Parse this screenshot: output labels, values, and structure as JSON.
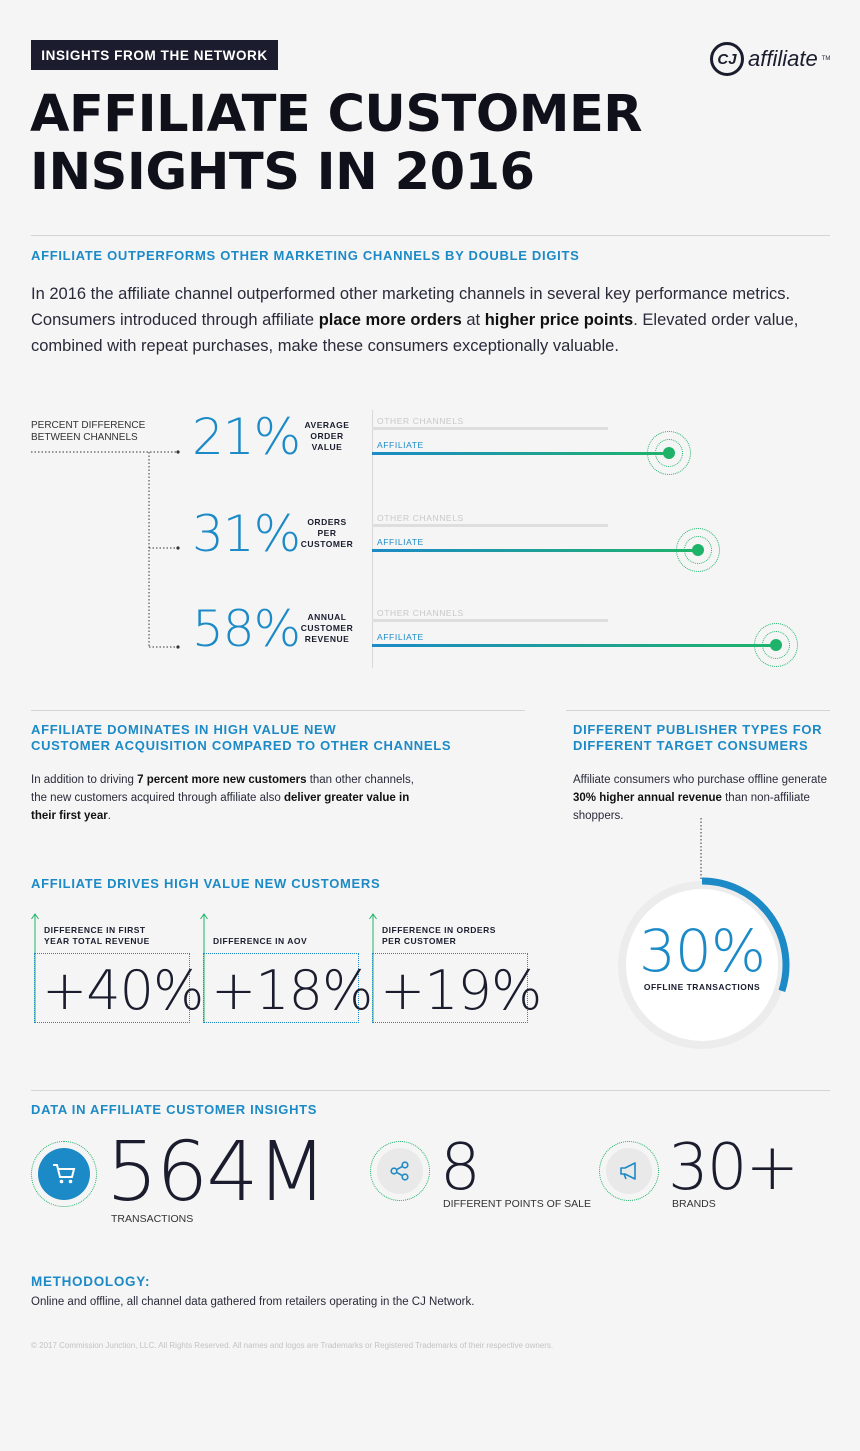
{
  "header": {
    "tag": "INSIGHTS FROM THE NETWORK",
    "logo_mark": "CJ",
    "logo_text": "affiliate",
    "logo_tm": "TM",
    "title_line1": "AFFILIATE CUSTOMER",
    "title_line2": "INSIGHTS IN 2016"
  },
  "section1": {
    "heading": "AFFILIATE OUTPERFORMS OTHER MARKETING CHANNELS BY DOUBLE DIGITS",
    "intro_1": "In 2016 the affiliate channel outperformed other marketing channels in several key performance metrics. Consumers introduced through affiliate ",
    "intro_b1": "place more orders",
    "intro_2": " at ",
    "intro_b2": "higher price points",
    "intro_3": ". Elevated order value, combined with repeat purchases, make these consumers exceptionally valuable.",
    "side_label_1": "PERCENT DIFFERENCE",
    "side_label_2": "BETWEEN CHANNELS",
    "rows": [
      {
        "pct": "21%",
        "metric_1": "AVERAGE",
        "metric_2": "ORDER",
        "metric_3": "VALUE",
        "other": "OTHER CHANNELS",
        "affiliate": "AFFILIATE",
        "other_level": 1.0,
        "affiliate_level": 1.21
      },
      {
        "pct": "31%",
        "metric_1": "ORDERS",
        "metric_2": "PER",
        "metric_3": "CUSTOMER",
        "other": "OTHER CHANNELS",
        "affiliate": "AFFILIATE",
        "other_level": 1.0,
        "affiliate_level": 1.31
      },
      {
        "pct": "58%",
        "metric_1": "ANNUAL",
        "metric_2": "CUSTOMER",
        "metric_3": "REVENUE",
        "other": "OTHER CHANNELS",
        "affiliate": "AFFILIATE",
        "other_level": 1.0,
        "affiliate_level": 1.58
      }
    ]
  },
  "section2": {
    "heading_1": "AFFILIATE DOMINATES IN HIGH VALUE NEW",
    "heading_2": "CUSTOMER ACQUISITION COMPARED TO OTHER CHANNELS",
    "text_1": "In addition to driving ",
    "text_b1": "7 percent more new customers",
    "text_2": " than other channels, the new customers acquired through affiliate also ",
    "text_b2": "deliver greater value in their first year",
    "text_3": ".",
    "sub_heading": "AFFILIATE DRIVES HIGH VALUE NEW CUSTOMERS",
    "cards": [
      {
        "label_1": "DIFFERENCE IN FIRST",
        "label_2": "YEAR TOTAL REVENUE",
        "value": "+40%"
      },
      {
        "label_1": "",
        "label_2": "DIFFERENCE IN AOV",
        "value": "+18%"
      },
      {
        "label_1": "DIFFERENCE IN ORDERS",
        "label_2": "PER CUSTOMER",
        "value": "+19%"
      }
    ]
  },
  "section3": {
    "heading_1": "DIFFERENT PUBLISHER TYPES FOR",
    "heading_2": "DIFFERENT TARGET CONSUMERS",
    "text_1": "Affiliate consumers who purchase offline generate ",
    "text_b1": "30% higher annual revenue",
    "text_2": " than non-affiliate shoppers.",
    "donut_value": "30%",
    "donut_label": "OFFLINE TRANSACTIONS",
    "donut_fraction": 0.3
  },
  "section4": {
    "heading": "DATA IN AFFILIATE CUSTOMER INSIGHTS",
    "stats": [
      {
        "icon": "cart-icon",
        "value": "564M",
        "caption": "TRANSACTIONS"
      },
      {
        "icon": "share-icon",
        "value": "8",
        "caption": "DIFFERENT POINTS OF SALE"
      },
      {
        "icon": "megaphone-icon",
        "value": "30+",
        "caption": "BRANDS"
      }
    ]
  },
  "methodology": {
    "heading": "METHODOLOGY:",
    "text": "Online and offline, all channel data gathered from retailers operating in the CJ Network."
  },
  "footer": {
    "copyright": "© 2017 Commission Junction, LLC. All Rights Reserved. All names and logos are Trademarks or Registered Trademarks of their respective owners."
  },
  "colors": {
    "accent_blue": "#1c8ac6",
    "accent_green": "#1fb36a",
    "dark": "#1b1d2e"
  }
}
